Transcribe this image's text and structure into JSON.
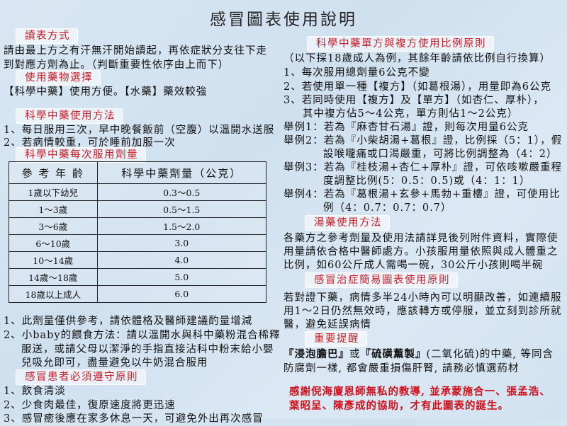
{
  "title": "感冒圖表使用說明",
  "left": {
    "read": {
      "header": "讀表方式",
      "lines": [
        "請由最上方之有汗無汗開始讀起，再依症狀分支往下走",
        "到對應方劑為止。（判斷重要性依序由上而下）"
      ]
    },
    "choice": {
      "header": "使用藥物選擇",
      "lines": [
        "【科學中藥】使用方便。【水藥】藥效較強"
      ]
    },
    "usage": {
      "header": "科學中藥使用方法",
      "lines": [
        "1、每日服用三次，早中晚餐飯前（空腹）以溫開水送服",
        "2、若病情較重，可於睡前加服一次"
      ]
    },
    "dosage": {
      "header": "科學中藥每次服用劑量",
      "columns": [
        "參 考 年 齡",
        "科學中藥劑量（公克）"
      ],
      "rows": [
        [
          "1歲以下幼兒",
          "0.3～0.5"
        ],
        [
          "1～3歲",
          "0.5～1.5"
        ],
        [
          "3～6歲",
          "1.5～2.0"
        ],
        [
          "6～10歲",
          "3.0"
        ],
        [
          "10～14歲",
          "4.0"
        ],
        [
          "14歲～18歲",
          "5.0"
        ],
        [
          "18歲以上成人",
          "6.0"
        ]
      ]
    },
    "notes": [
      "1、此劑量僅供參考，請依體格及醫師建議酌量增減",
      "2、小baby的餵食方法：請以溫開水與科中藥粉混合稀釋",
      "服送，或請父母以潔淨的手指直接沾科中粉末給小嬰",
      "兒吸允即可，盡量避免以牛奶混合服用"
    ],
    "rules": {
      "header": "感冒患者必須遵守原則",
      "lines": [
        "1、飲食清淡",
        "2、少食肉最佳，復原速度將更迅速",
        "3、感冒癒後應在家多休息一天，可避免外出再次感冒"
      ]
    }
  },
  "right": {
    "ratio": {
      "header": "科學中藥單方與複方使用比例原則",
      "lines": [
        "（以下採18歲成人為例，其餘年齡請依比例自行換算）",
        "1、每次服用總劑量6公克不變",
        "2、若使用單一種【複方】（如葛根湯），用量即為6公克",
        "3、若同時使用【複方】及【單方】（如杏仁、厚朴），",
        "其中複方佔5～4公克，單方則佔1～2公克）",
        "舉例1：若為『麻杏甘石湯』證，則每次用量6公克",
        "舉例2：若為『小柴胡湯+葛根』證，比例採（5：1），假",
        "設喉嚨痛或口渴嚴重，可將比例調整為（4：2）",
        "舉例3：若為『桂枝湯+杏仁+厚朴』證，可依咳嗽嚴重程",
        "度調整比例(5：0.5：0.5)或（4：1：1）",
        "舉例4：若為『葛根湯+玄參+馬勃+重樓』證，可使用比",
        "例（4：0.7：0.7：0.7）"
      ]
    },
    "decoction": {
      "header": "湯藥使用方法",
      "lines": [
        "各藥方之參考劑量及使用法請詳見後列附件資料，實際使",
        "用量請依合格中醫師處方。小孩服用量依照與成人體重之",
        "比例，如60公斤成人需喝一碗，30公斤小孩則喝半碗"
      ]
    },
    "principle": {
      "header": "感冒治症簡易圖表使用原則",
      "lines": [
        "若對證下藥，病情多半24小時內可以明顯改善，如連續服",
        "用1～2日仍然無效時，應該轉方或停服，並立刻到診所就",
        "醫，避免延誤病情"
      ]
    },
    "reminder": {
      "header": "重要提醒",
      "bold1": "『浸泡膽巴』",
      "mid1": "或",
      "bold2": "『硫磺薰製』",
      "rest1": "(二氧化硫)的中藥, 等同含",
      "line2": "防腐劑一樣, 都會嚴重損傷肝腎, 請務必慎選葯材"
    },
    "thanks": [
      "感謝倪海廈恩師無私的教導, 並承蒙施合一、張孟浩、",
      "葉昭呈、陳彥成的協助，才有此圖表的誕生。"
    ]
  },
  "colors": {
    "header_text": "#c8202a",
    "thanks_text": "#d0101a",
    "background": "#d6e5f2"
  }
}
